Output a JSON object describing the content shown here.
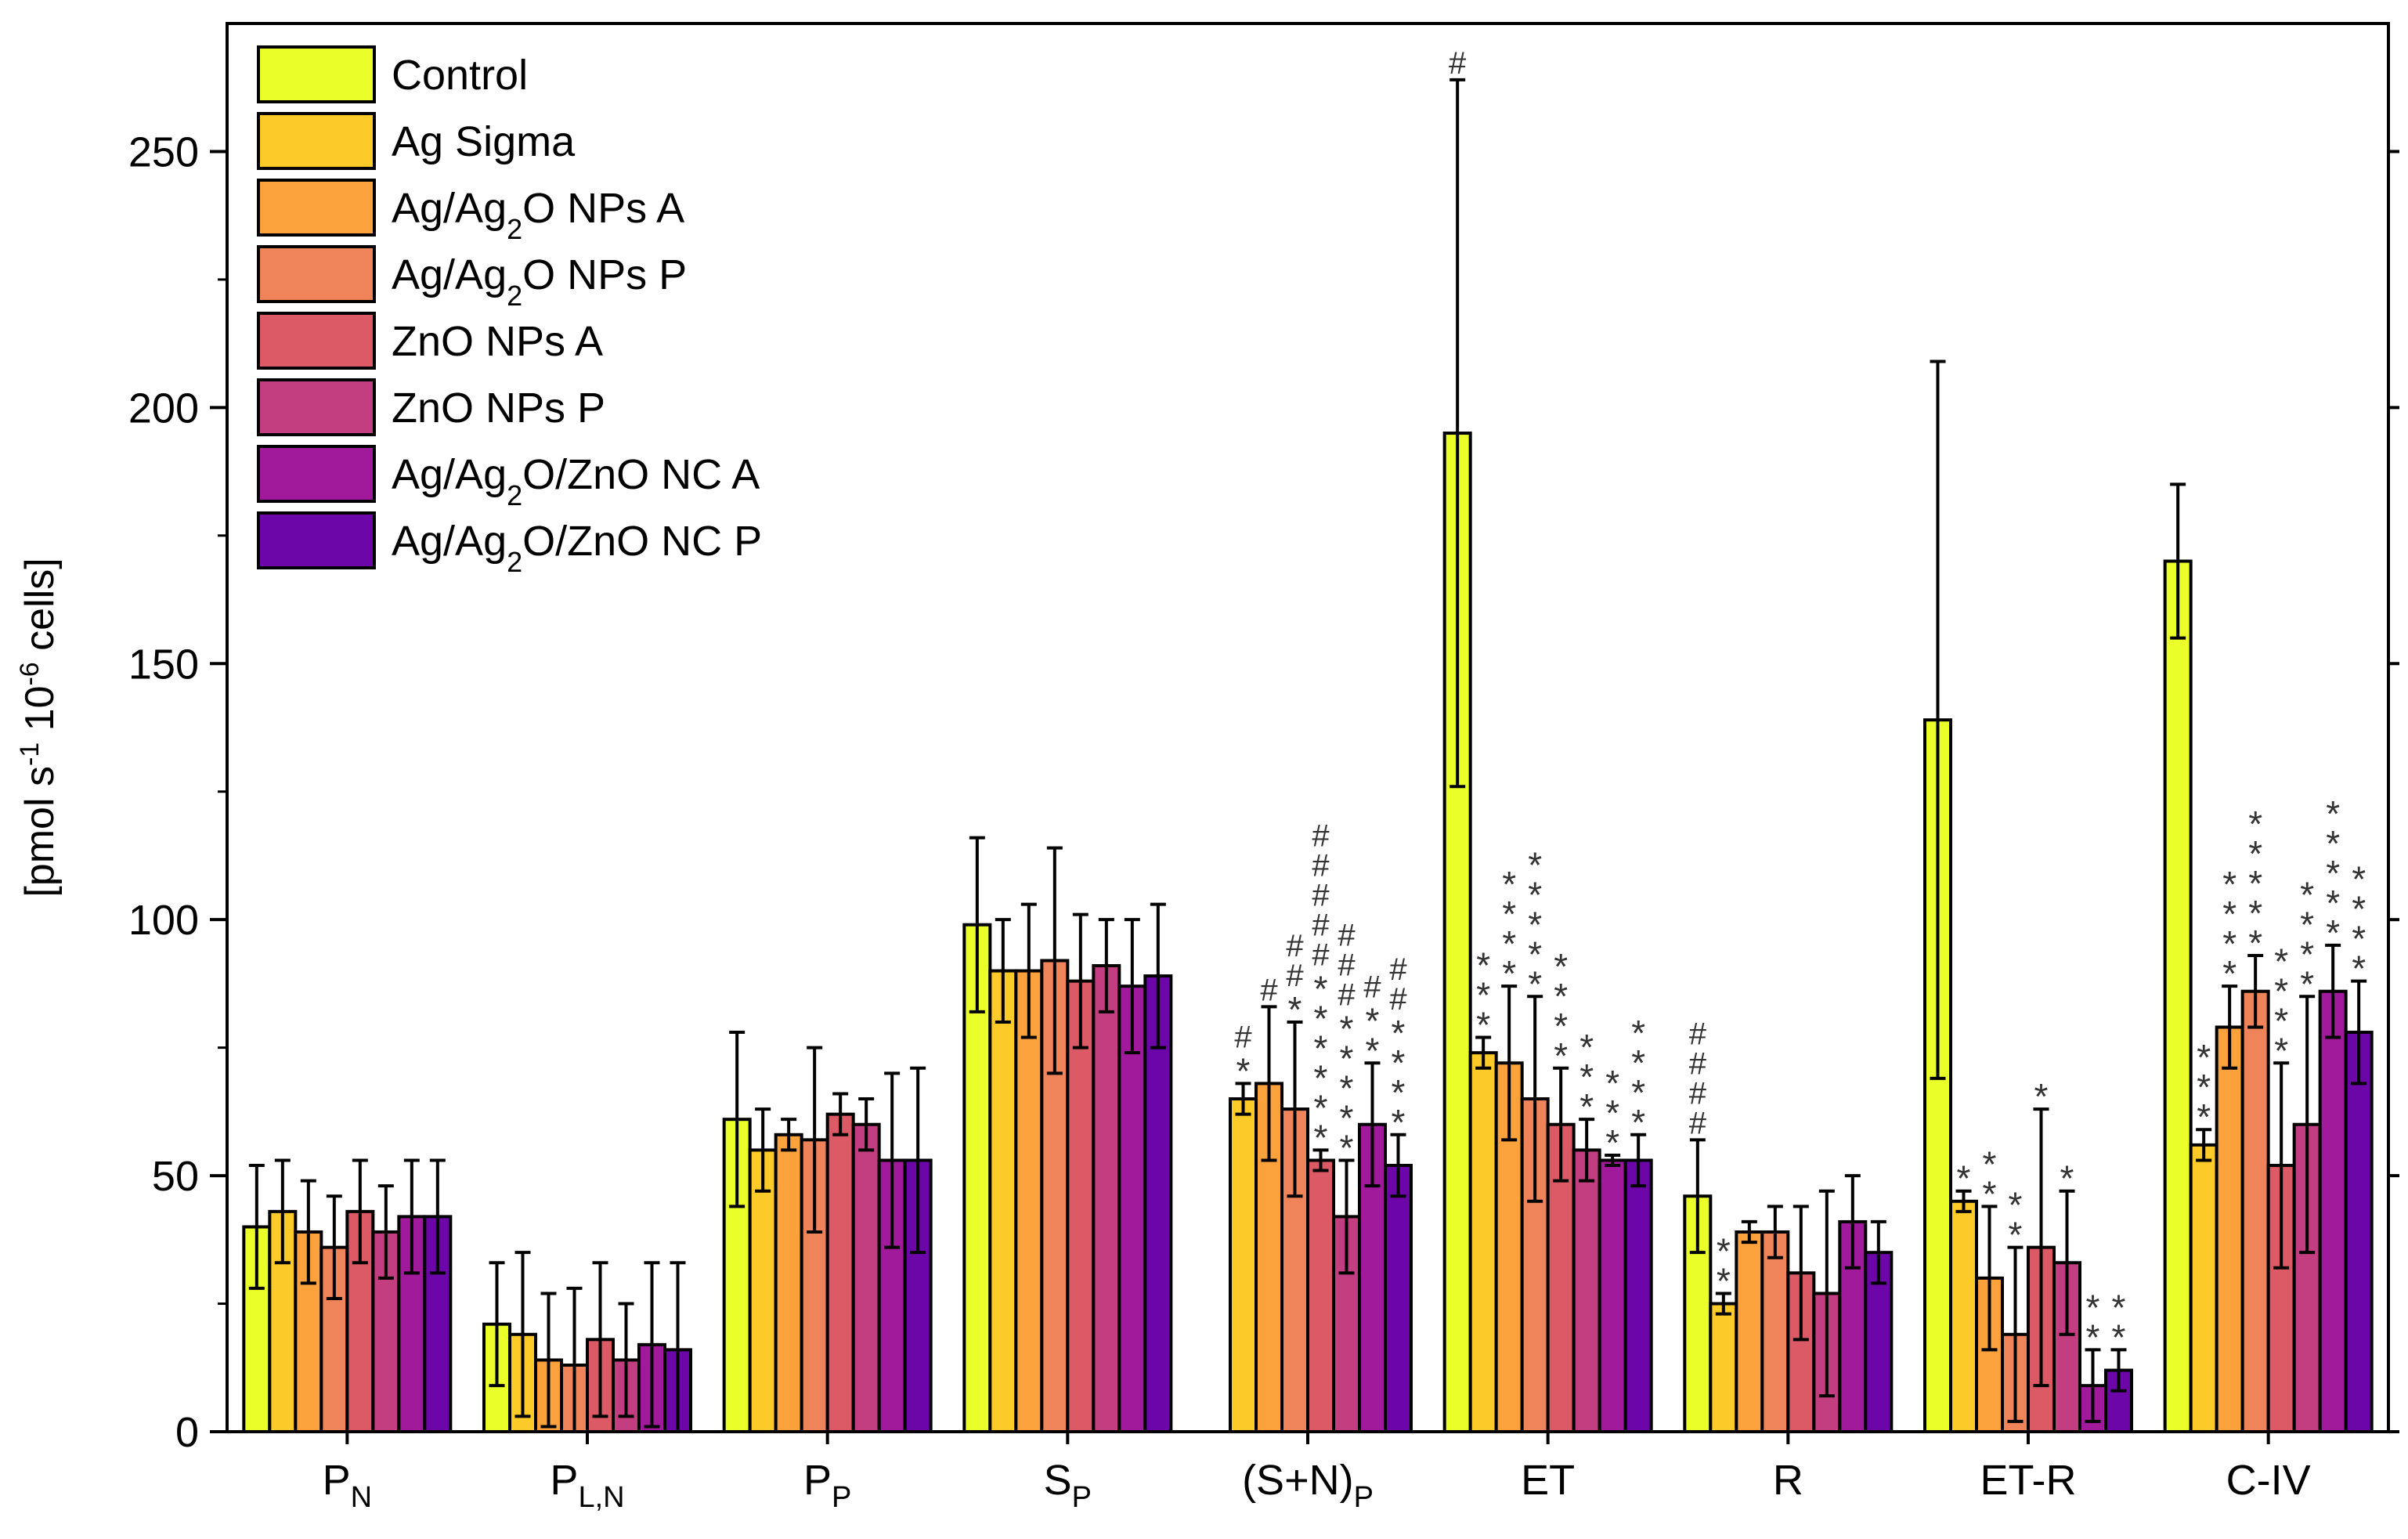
{
  "chart_data": {
    "type": "bar",
    "ylabel": "[pmol s-1 10-6 cells]",
    "ylabel_parts": [
      "[pmol s",
      "-1",
      " 10",
      "-6",
      " cells]"
    ],
    "ylim": [
      0,
      275
    ],
    "yticks": [
      0,
      50,
      100,
      150,
      200,
      250
    ],
    "legend_position": "top-left",
    "categories": [
      "P_N",
      "P_L,N",
      "P_P",
      "S_P",
      "(S+N)_P",
      "ET",
      "R",
      "ET-R",
      "C-IV"
    ],
    "category_labels": [
      {
        "base": "P",
        "sub": "N",
        "suffix": ""
      },
      {
        "base": "P",
        "sub": "L,N",
        "suffix": ""
      },
      {
        "base": "P",
        "sub": "P",
        "suffix": ""
      },
      {
        "base": "S",
        "sub": "P",
        "suffix": ""
      },
      {
        "base": "(S+N)",
        "sub": "P",
        "suffix": ""
      },
      {
        "base": "ET",
        "sub": "",
        "suffix": ""
      },
      {
        "base": "R",
        "sub": "",
        "suffix": ""
      },
      {
        "base": "ET-R",
        "sub": "",
        "suffix": ""
      },
      {
        "base": "C-IV",
        "sub": "",
        "suffix": ""
      }
    ],
    "series": [
      {
        "name": "Control",
        "name_parts": [
          "Control"
        ],
        "color": "#eaff2a",
        "values": [
          40,
          21,
          61,
          99,
          null,
          195,
          46,
          139,
          170
        ],
        "errors": [
          12,
          12,
          17,
          17,
          null,
          69,
          11,
          70,
          15
        ]
      },
      {
        "name": "Ag Sigma",
        "name_parts": [
          "Ag Sigma"
        ],
        "color": "#fccb2a",
        "values": [
          43,
          19,
          55,
          90,
          65,
          74,
          25,
          45,
          56
        ],
        "errors": [
          10,
          16,
          8,
          10,
          3,
          3,
          2,
          2,
          3
        ]
      },
      {
        "name": "Ag/Ag2O NPs A",
        "name_parts": [
          "Ag/Ag",
          "2",
          "O NPs A"
        ],
        "color": "#fca23c",
        "values": [
          39,
          14,
          58,
          90,
          68,
          72,
          39,
          30,
          79
        ],
        "errors": [
          10,
          13,
          3,
          13,
          15,
          15,
          2,
          14,
          8
        ]
      },
      {
        "name": "Ag/Ag2O NPs P",
        "name_parts": [
          "Ag/Ag",
          "2",
          "O NPs P"
        ],
        "color": "#ef835a",
        "values": [
          36,
          13,
          57,
          92,
          63,
          65,
          39,
          19,
          86
        ],
        "errors": [
          10,
          15,
          18,
          22,
          17,
          20,
          5,
          17,
          7
        ]
      },
      {
        "name": "ZnO NPs A",
        "name_parts": [
          "ZnO NPs A"
        ],
        "color": "#dc5a66",
        "values": [
          43,
          18,
          62,
          88,
          53,
          60,
          31,
          36,
          52
        ],
        "errors": [
          10,
          15,
          4,
          13,
          2,
          11,
          13,
          27,
          20
        ]
      },
      {
        "name": "ZnO NPs P",
        "name_parts": [
          "ZnO NPs P"
        ],
        "color": "#c33e81",
        "values": [
          39,
          14,
          60,
          91,
          42,
          55,
          27,
          33,
          60
        ],
        "errors": [
          9,
          11,
          5,
          9,
          11,
          6,
          20,
          14,
          25
        ]
      },
      {
        "name": "Ag/Ag2O/ZnO NC A",
        "name_parts": [
          "Ag/Ag",
          "2",
          "O/ZnO NC A"
        ],
        "color": "#a11a9c",
        "values": [
          42,
          17,
          53,
          87,
          60,
          53,
          41,
          9,
          86
        ],
        "errors": [
          11,
          16,
          17,
          13,
          12,
          1,
          9,
          7,
          9
        ]
      },
      {
        "name": "Ag/Ag2O/ZnO NC P",
        "name_parts": [
          "Ag/Ag",
          "2",
          "O/ZnO NC P"
        ],
        "color": "#6d06a8",
        "values": [
          42,
          16,
          53,
          89,
          52,
          53,
          35,
          12,
          78
        ],
        "errors": [
          11,
          17,
          18,
          14,
          6,
          5,
          6,
          4,
          10
        ]
      }
    ],
    "significance": [
      {
        "cat": 0,
        "s": 0,
        "hash": 0,
        "star": 0
      },
      {
        "cat": 4,
        "s": 1,
        "hash": 1,
        "star": 1
      },
      {
        "cat": 4,
        "s": 2,
        "hash": 1,
        "star": 0
      },
      {
        "cat": 4,
        "s": 3,
        "hash": 2,
        "star": 1
      },
      {
        "cat": 4,
        "s": 4,
        "hash": 5,
        "star": 6
      },
      {
        "cat": 4,
        "s": 5,
        "hash": 3,
        "star": 5
      },
      {
        "cat": 4,
        "s": 6,
        "hash": 1,
        "star": 2
      },
      {
        "cat": 4,
        "s": 7,
        "hash": 2,
        "star": 4
      },
      {
        "cat": 5,
        "s": 0,
        "hash": 1,
        "star": 0
      },
      {
        "cat": 5,
        "s": 1,
        "hash": 0,
        "star": 3
      },
      {
        "cat": 5,
        "s": 2,
        "hash": 0,
        "star": 4
      },
      {
        "cat": 5,
        "s": 3,
        "hash": 0,
        "star": 5
      },
      {
        "cat": 5,
        "s": 4,
        "hash": 0,
        "star": 4
      },
      {
        "cat": 5,
        "s": 5,
        "hash": 0,
        "star": 3
      },
      {
        "cat": 5,
        "s": 6,
        "hash": 0,
        "star": 3
      },
      {
        "cat": 5,
        "s": 7,
        "hash": 0,
        "star": 4
      },
      {
        "cat": 6,
        "s": 0,
        "hash": 4,
        "star": 0
      },
      {
        "cat": 6,
        "s": 1,
        "hash": 0,
        "star": 2
      },
      {
        "cat": 7,
        "s": 1,
        "hash": 0,
        "star": 1
      },
      {
        "cat": 7,
        "s": 2,
        "hash": 0,
        "star": 2
      },
      {
        "cat": 7,
        "s": 3,
        "hash": 0,
        "star": 2
      },
      {
        "cat": 7,
        "s": 4,
        "hash": 0,
        "star": 1
      },
      {
        "cat": 7,
        "s": 5,
        "hash": 0,
        "star": 1
      },
      {
        "cat": 7,
        "s": 6,
        "hash": 0,
        "star": 2
      },
      {
        "cat": 7,
        "s": 7,
        "hash": 0,
        "star": 2
      },
      {
        "cat": 8,
        "s": 1,
        "hash": 0,
        "star": 3
      },
      {
        "cat": 8,
        "s": 2,
        "hash": 0,
        "star": 4
      },
      {
        "cat": 8,
        "s": 3,
        "hash": 0,
        "star": 5
      },
      {
        "cat": 8,
        "s": 4,
        "hash": 0,
        "star": 4
      },
      {
        "cat": 8,
        "s": 5,
        "hash": 0,
        "star": 4
      },
      {
        "cat": 8,
        "s": 6,
        "hash": 0,
        "star": 5
      },
      {
        "cat": 8,
        "s": 7,
        "hash": 0,
        "star": 4
      }
    ]
  }
}
